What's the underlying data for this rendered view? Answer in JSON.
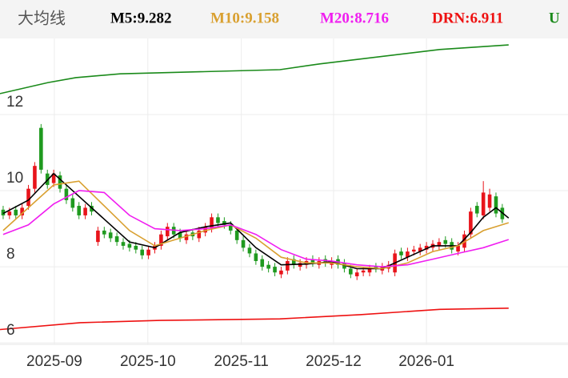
{
  "chart_data": {
    "type": "candlestick",
    "title": "大均线",
    "x": [
      0,
      1,
      2,
      3,
      4,
      5,
      6,
      7,
      8,
      9,
      10,
      11,
      12,
      13,
      14,
      15,
      16,
      17,
      18,
      19,
      20,
      21,
      22,
      23,
      24,
      25,
      26,
      27,
      28,
      29,
      30,
      31,
      32,
      33,
      34,
      35,
      36,
      37,
      38,
      39,
      40,
      41,
      42,
      43,
      44,
      45,
      46,
      47,
      48,
      49,
      50,
      51,
      52,
      53,
      54,
      55,
      56,
      57,
      58,
      59,
      60,
      61,
      62,
      63,
      64,
      65,
      66,
      67,
      68,
      69,
      70,
      71,
      72,
      73,
      74,
      75,
      76,
      77,
      78,
      79
    ],
    "open": [
      9.5,
      9.35,
      9.5,
      9.35,
      9.6,
      10.05,
      11.65,
      10.45,
      10.2,
      10.4,
      10.05,
      9.8,
      9.6,
      9.35,
      9.6,
      8.65,
      8.95,
      8.9,
      8.8,
      8.65,
      8.6,
      8.55,
      8.45,
      8.3,
      8.45,
      8.55,
      8.8,
      9.05,
      8.9,
      8.7,
      8.9,
      8.75,
      8.9,
      9.0,
      9.3,
      9.2,
      9.1,
      8.95,
      8.7,
      8.5,
      8.35,
      8.2,
      8.05,
      8.0,
      7.8,
      7.9,
      8.2,
      8.0,
      8.05,
      8.2,
      8.05,
      8.2,
      8.05,
      8.2,
      8.1,
      7.95,
      7.75,
      7.85,
      7.85,
      8.0,
      7.9,
      7.95,
      7.85,
      8.4,
      8.25,
      8.4,
      8.4,
      8.45,
      8.5,
      8.55,
      8.7,
      8.65,
      8.4,
      8.5,
      8.85,
      9.6,
      9.35,
      9.55,
      9.85,
      9.55
    ],
    "high": [
      9.6,
      9.55,
      9.6,
      9.65,
      10.15,
      10.75,
      11.75,
      10.55,
      10.55,
      10.5,
      10.15,
      9.9,
      9.7,
      9.65,
      9.7,
      9.05,
      9.05,
      9.0,
      8.9,
      8.75,
      8.7,
      8.65,
      8.55,
      8.55,
      8.65,
      8.95,
      9.15,
      9.15,
      9.0,
      8.95,
      9.0,
      9.05,
      9.15,
      9.4,
      9.4,
      9.3,
      9.2,
      9.05,
      8.8,
      8.6,
      8.45,
      8.3,
      8.15,
      8.1,
      8.0,
      8.25,
      8.3,
      8.2,
      8.25,
      8.3,
      8.25,
      8.3,
      8.25,
      8.3,
      8.2,
      8.05,
      7.95,
      8.0,
      8.05,
      8.1,
      8.1,
      8.15,
      8.45,
      8.5,
      8.5,
      8.55,
      8.6,
      8.65,
      8.7,
      8.75,
      8.8,
      8.75,
      8.65,
      8.95,
      9.55,
      9.7,
      10.25,
      10.05,
      9.95,
      9.65
    ],
    "low": [
      9.25,
      9.25,
      9.25,
      9.25,
      9.5,
      9.95,
      10.45,
      10.05,
      10.1,
      9.95,
      9.65,
      9.45,
      9.25,
      9.25,
      9.35,
      8.55,
      8.75,
      8.65,
      8.55,
      8.45,
      8.4,
      8.35,
      8.2,
      8.2,
      8.35,
      8.45,
      8.7,
      8.75,
      8.65,
      8.6,
      8.7,
      8.65,
      8.8,
      8.9,
      9.05,
      9.0,
      8.85,
      8.6,
      8.4,
      8.25,
      8.05,
      7.9,
      7.85,
      7.75,
      7.7,
      7.8,
      7.95,
      7.9,
      7.95,
      8.0,
      7.95,
      8.0,
      7.95,
      7.95,
      7.85,
      7.7,
      7.65,
      7.75,
      7.75,
      7.85,
      7.8,
      7.85,
      7.75,
      8.2,
      8.15,
      8.3,
      8.3,
      8.35,
      8.4,
      8.45,
      8.5,
      8.35,
      8.3,
      8.4,
      8.75,
      9.3,
      9.25,
      9.45,
      9.3,
      9.15
    ],
    "close": [
      9.35,
      9.45,
      9.35,
      9.55,
      10.05,
      10.65,
      10.55,
      10.15,
      10.45,
      10.05,
      9.75,
      9.55,
      9.35,
      9.55,
      9.45,
      8.95,
      8.85,
      8.75,
      8.65,
      8.55,
      8.5,
      8.45,
      8.3,
      8.45,
      8.55,
      8.85,
      9.05,
      8.85,
      8.75,
      8.85,
      8.8,
      8.95,
      9.05,
      9.3,
      9.15,
      9.1,
      8.95,
      8.7,
      8.5,
      8.35,
      8.15,
      8.0,
      7.95,
      7.85,
      7.9,
      8.15,
      8.05,
      8.1,
      8.15,
      8.1,
      8.15,
      8.1,
      8.15,
      8.05,
      7.95,
      7.8,
      7.85,
      7.9,
      7.95,
      7.95,
      8.0,
      8.05,
      8.35,
      8.3,
      8.4,
      8.45,
      8.5,
      8.55,
      8.6,
      8.65,
      8.6,
      8.45,
      8.55,
      8.85,
      9.45,
      9.4,
      9.95,
      9.9,
      9.4,
      9.25
    ],
    "up_color": "#e8141b",
    "down_color": "#1f9a1f",
    "series": [
      {
        "name": "M5:9.282",
        "color": "#000000",
        "x": [
          0,
          4,
          8,
          12,
          16,
          20,
          24,
          28,
          32,
          36,
          40,
          44,
          48,
          52,
          56,
          60,
          64,
          68,
          72,
          74,
          76,
          78,
          80
        ],
        "values": [
          9.4,
          9.75,
          10.45,
          9.85,
          9.25,
          8.65,
          8.5,
          8.9,
          9.05,
          9.15,
          8.5,
          8.05,
          8.07,
          8.13,
          7.95,
          7.95,
          8.25,
          8.55,
          8.55,
          8.9,
          9.3,
          9.55,
          9.282
        ]
      },
      {
        "name": "M10:9.158",
        "color": "#d9a030",
        "x": [
          0,
          4,
          8,
          12,
          16,
          20,
          24,
          28,
          32,
          36,
          40,
          44,
          48,
          52,
          56,
          60,
          64,
          68,
          72,
          76,
          80
        ],
        "values": [
          8.95,
          9.55,
          10.15,
          10.25,
          9.6,
          8.95,
          8.55,
          8.75,
          8.95,
          9.1,
          8.75,
          8.25,
          8.1,
          8.1,
          8.0,
          7.95,
          8.1,
          8.4,
          8.55,
          8.95,
          9.158
        ]
      },
      {
        "name": "M20:8.716",
        "color": "#f01ef0",
        "x": [
          0,
          4,
          8,
          12,
          16,
          20,
          24,
          28,
          32,
          36,
          40,
          44,
          48,
          52,
          56,
          60,
          64,
          68,
          72,
          76,
          80
        ],
        "values": [
          8.85,
          9.1,
          9.65,
          10.0,
          9.95,
          9.35,
          9.0,
          8.95,
          9.0,
          9.1,
          8.85,
          8.45,
          8.2,
          8.15,
          8.05,
          8.0,
          8.05,
          8.2,
          8.35,
          8.5,
          8.716
        ]
      },
      {
        "name": "DRN:6.911",
        "color": "#ee1111",
        "x": [
          -0.5,
          12.2,
          24.8,
          43.8,
          56.5,
          69.1,
          80
        ],
        "values": [
          6.35,
          6.53,
          6.59,
          6.63,
          6.74,
          6.88,
          6.911
        ]
      },
      {
        "name": "U",
        "color": "#1a8a1a",
        "x": [
          -0.5,
          7.1,
          11.5,
          18.5,
          43.8,
          50.1,
          69.1,
          80
        ],
        "values": [
          12.55,
          12.84,
          12.97,
          13.07,
          13.18,
          13.33,
          13.71,
          13.83
        ]
      }
    ],
    "xlim": [
      -0.5,
      89.4
    ],
    "ylim": [
      5.96,
      14.0
    ],
    "yticks": [
      6,
      8,
      10,
      12
    ],
    "xticks": [
      {
        "value": 8.1,
        "label": "2025-09"
      },
      {
        "value": 22.9,
        "label": "2025-10"
      },
      {
        "value": 37.7,
        "label": "2025-11"
      },
      {
        "value": 52.3,
        "label": "2025-12"
      },
      {
        "value": 67.0,
        "label": "2026-01"
      }
    ],
    "grid": true
  }
}
